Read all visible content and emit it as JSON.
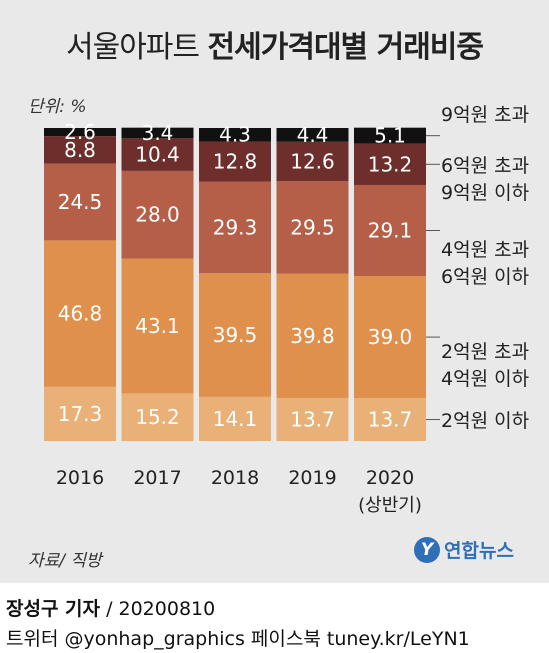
{
  "title_light": "서울아파트",
  "title_bold": "전세가격대별 거래비중",
  "unit_label": "단위: %",
  "source_label": "자료/ 직방",
  "logo": {
    "mark": "Y",
    "text": "연합뉴스"
  },
  "credit": {
    "author": "장성구 기자",
    "date": "/ 20200810",
    "social": "트위터 @yonhap_graphics  페이스북 tuney.kr/LeYN1"
  },
  "chart_data": {
    "type": "bar",
    "stacked": true,
    "categories": [
      "2016",
      "2017",
      "2018",
      "2019",
      "2020"
    ],
    "category_sublabels": [
      "",
      "",
      "",
      "",
      "(상반기)"
    ],
    "ylim": [
      0,
      100
    ],
    "grid": false,
    "legend_position": "right",
    "series": [
      {
        "name": "2억원 이하",
        "color": "#e9b178",
        "values": [
          17.3,
          15.2,
          14.1,
          13.7,
          13.7
        ]
      },
      {
        "name": "2억원 초과 4억원 이하",
        "color": "#e0904d",
        "values": [
          46.8,
          43.1,
          39.5,
          39.8,
          39.0
        ]
      },
      {
        "name": "4억원 초과 6억원 이하",
        "color": "#b55e48",
        "values": [
          24.5,
          28.0,
          29.3,
          29.5,
          29.1
        ]
      },
      {
        "name": "6억원 초과 9억원 이하",
        "color": "#6e2f2c",
        "values": [
          8.8,
          10.4,
          12.8,
          12.6,
          13.2
        ]
      },
      {
        "name": "9억원 초과",
        "color": "#111111",
        "values": [
          2.6,
          3.4,
          4.3,
          4.4,
          5.1
        ]
      }
    ],
    "legend_lines": [
      [
        "2억원 이하"
      ],
      [
        "2억원 초과",
        "4억원 이하"
      ],
      [
        "4억원 초과",
        "6억원 이하"
      ],
      [
        "6억원 초과",
        "9억원 이하"
      ],
      [
        "9억원 초과"
      ]
    ]
  }
}
